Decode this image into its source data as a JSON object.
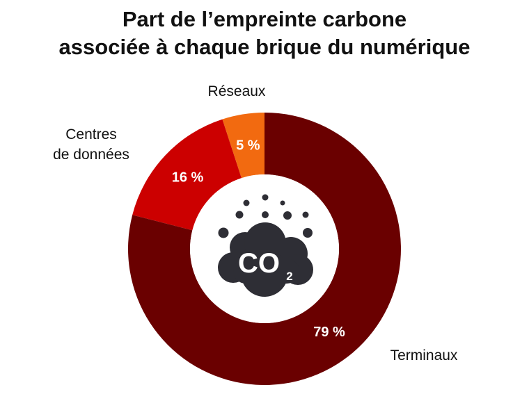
{
  "title": {
    "line1": "Part de l’empreinte carbone",
    "line2": "associée à chaque brique du numérique"
  },
  "chart_data": {
    "type": "pie",
    "title": "Part de l’empreinte carbone associée à chaque brique du numérique",
    "unit": "%",
    "start_at": "top",
    "direction": "counterclockwise",
    "segments": [
      {
        "key": "reseaux",
        "category": [
          "Réseaux"
        ],
        "value": 5,
        "value_label": "5 %",
        "color": "#f26a10",
        "label_position": "above"
      },
      {
        "key": "centres",
        "category": [
          "Centres",
          "de données"
        ],
        "value": 16,
        "value_label": "16 %",
        "color": "#cc0000",
        "label_position": "upper-left"
      },
      {
        "key": "terminaux",
        "category": [
          "Terminaux"
        ],
        "value": 79,
        "value_label": "79 %",
        "color": "#6a0000",
        "label_position": "lower-right"
      }
    ]
  },
  "center_icon": {
    "name": "co2-cloud-icon",
    "text": "CO",
    "subscript": "2",
    "color": "#2e2e35"
  }
}
